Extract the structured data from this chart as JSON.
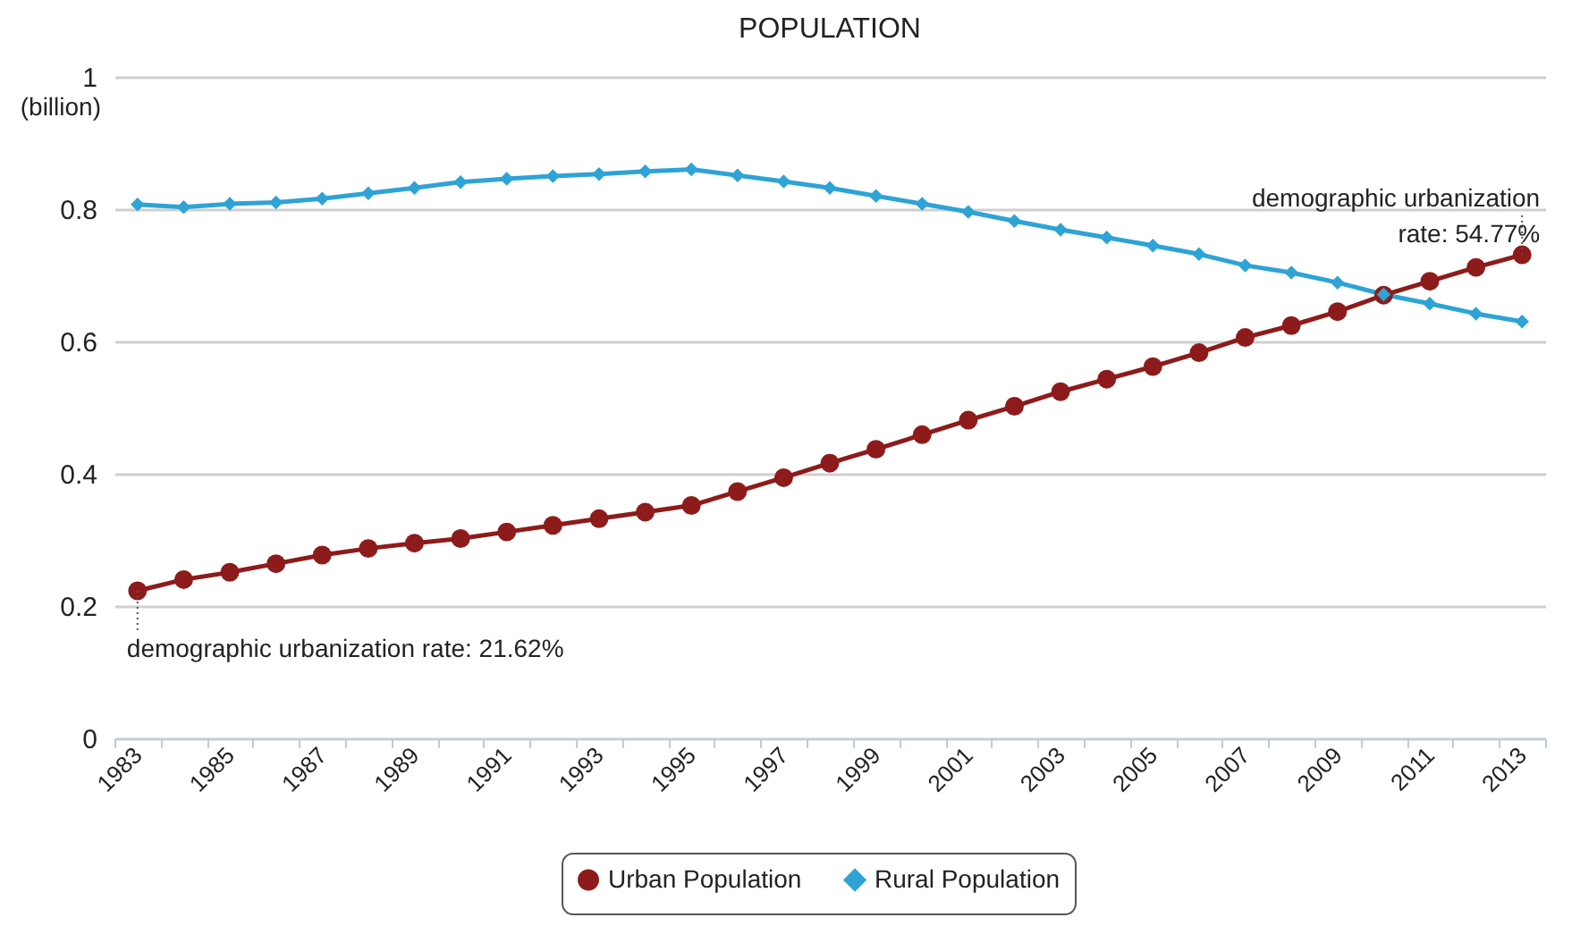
{
  "chart_data": {
    "type": "line",
    "title": "POPULATION",
    "ylabel": "(billion)",
    "categories": [
      "1983",
      null,
      "1985",
      null,
      "1987",
      null,
      "1989",
      null,
      "1991",
      null,
      "1993",
      null,
      "1995",
      null,
      "1997",
      null,
      "1999",
      null,
      "2001",
      null,
      "2003",
      null,
      "2005",
      null,
      "2007",
      null,
      "2009",
      null,
      "2011",
      null,
      "2013"
    ],
    "series": [
      {
        "name": "Urban Population",
        "color": "#8e1b1b",
        "marker": "circle",
        "values": [
          0.223,
          0.24,
          0.251,
          0.264,
          0.277,
          0.287,
          0.295,
          0.302,
          0.312,
          0.322,
          0.332,
          0.342,
          0.352,
          0.373,
          0.394,
          0.416,
          0.437,
          0.459,
          0.481,
          0.502,
          0.524,
          0.543,
          0.562,
          0.583,
          0.606,
          0.624,
          0.645,
          0.67,
          0.691,
          0.712,
          0.731
        ]
      },
      {
        "name": "Rural Population",
        "color": "#2ea3d5",
        "marker": "diamond",
        "values": [
          0.807,
          0.803,
          0.808,
          0.81,
          0.816,
          0.824,
          0.832,
          0.841,
          0.846,
          0.85,
          0.853,
          0.857,
          0.86,
          0.851,
          0.842,
          0.832,
          0.82,
          0.808,
          0.796,
          0.782,
          0.769,
          0.757,
          0.745,
          0.732,
          0.715,
          0.704,
          0.689,
          0.671,
          0.657,
          0.642,
          0.63
        ]
      }
    ],
    "ylim": [
      0,
      1
    ],
    "yticks": [
      0,
      0.2,
      0.4,
      0.6,
      0.8,
      1
    ],
    "grid": "y",
    "legend": "bottom",
    "annotations": [
      {
        "text": "demographic urbanization rate: 21.62%",
        "x": "1983",
        "y": 0.223
      },
      {
        "text": "demographic urbanization\nrate: 54.77%",
        "x": "2013",
        "y": 0.731
      }
    ]
  }
}
